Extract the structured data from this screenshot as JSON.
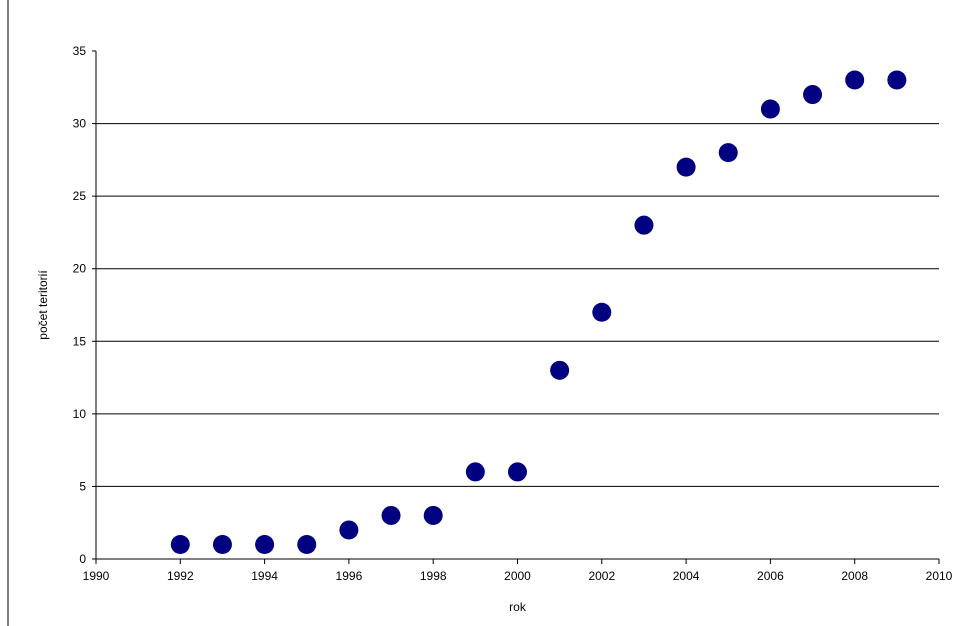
{
  "chart_data": {
    "type": "scatter",
    "xlabel": "rok",
    "ylabel": "počet teritorií",
    "xlim": [
      1990,
      2010
    ],
    "ylim": [
      0,
      35
    ],
    "xticks": [
      1990,
      1992,
      1994,
      1996,
      1998,
      2000,
      2002,
      2004,
      2006,
      2008,
      2010
    ],
    "yticks": [
      0,
      5,
      10,
      15,
      20,
      25,
      30,
      35
    ],
    "grid": "horizontal",
    "marker_color": "#000080",
    "points": [
      {
        "x": 1992,
        "y": 1
      },
      {
        "x": 1993,
        "y": 1
      },
      {
        "x": 1994,
        "y": 1
      },
      {
        "x": 1995,
        "y": 1
      },
      {
        "x": 1996,
        "y": 2
      },
      {
        "x": 1997,
        "y": 3
      },
      {
        "x": 1998,
        "y": 3
      },
      {
        "x": 1999,
        "y": 6
      },
      {
        "x": 2000,
        "y": 6
      },
      {
        "x": 2001,
        "y": 13
      },
      {
        "x": 2002,
        "y": 17
      },
      {
        "x": 2003,
        "y": 23
      },
      {
        "x": 2004,
        "y": 27
      },
      {
        "x": 2005,
        "y": 28
      },
      {
        "x": 2006,
        "y": 31
      },
      {
        "x": 2007,
        "y": 32
      },
      {
        "x": 2008,
        "y": 33
      },
      {
        "x": 2009,
        "y": 33
      }
    ]
  }
}
